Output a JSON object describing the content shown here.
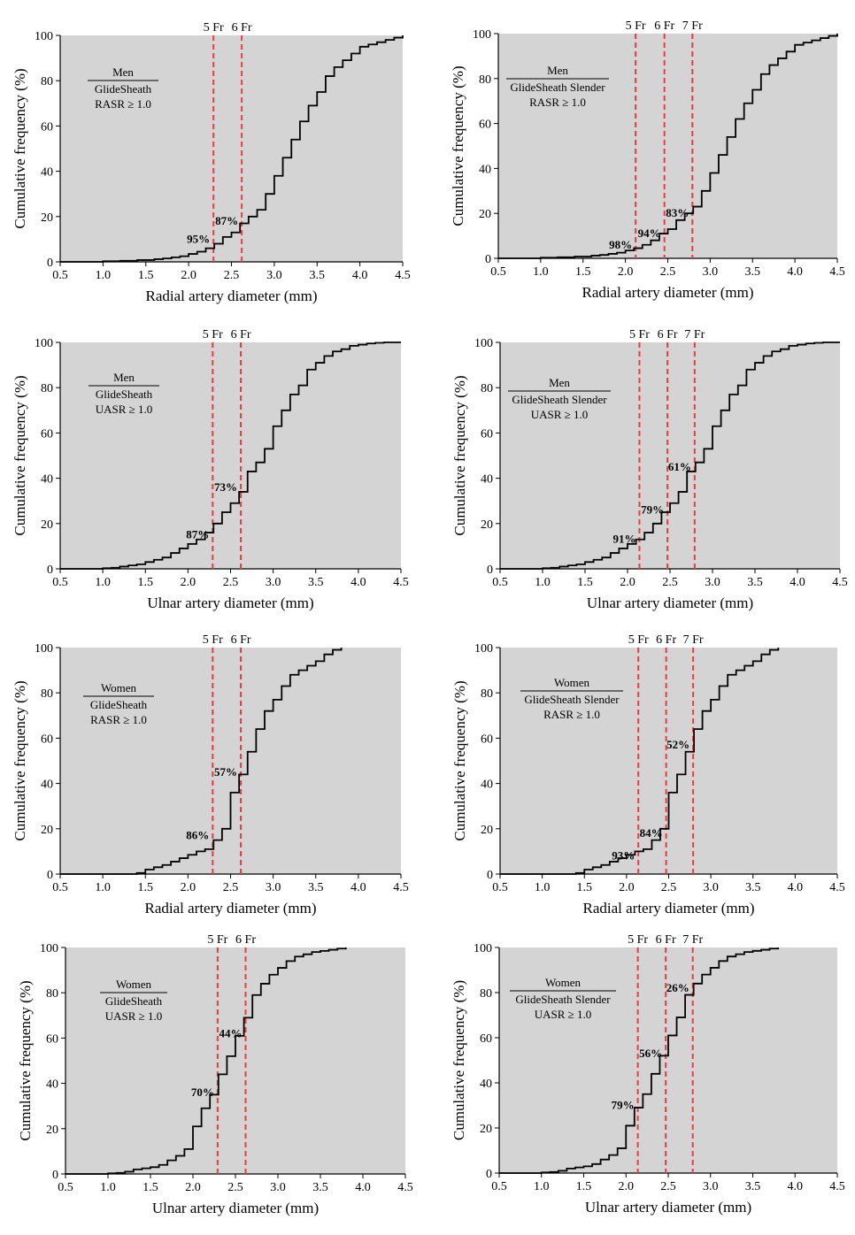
{
  "chart_data": [
    {
      "type": "line",
      "style": "step",
      "xlabel": "Radial artery diameter (mm)",
      "ylabel": "Cumulative frequency (%)",
      "xlim": [
        0.5,
        4.5
      ],
      "ylim": [
        0,
        100
      ],
      "xticks": [
        "0.5",
        "1.0",
        "1.5",
        "2.0",
        "2.5",
        "3.0",
        "3.5",
        "4.0",
        "4.5"
      ],
      "yticks": [
        "0",
        "20",
        "40",
        "60",
        "80",
        "100"
      ],
      "legend": {
        "group": "Men",
        "device": "GlideSheath",
        "ratio": "RASR ≥ 1.0"
      },
      "sheaths": [
        {
          "label": "5 Fr",
          "x": 2.29,
          "pct_label": "95%",
          "pct_y": 10
        },
        {
          "label": "6 Fr",
          "x": 2.62,
          "pct_label": "87%",
          "pct_y": 18
        }
      ],
      "series": [
        {
          "name": "cumulative frequency",
          "x": [
            0.5,
            1.0,
            1.2,
            1.4,
            1.6,
            1.7,
            1.8,
            1.9,
            2.0,
            2.1,
            2.2,
            2.3,
            2.4,
            2.5,
            2.6,
            2.7,
            2.8,
            2.9,
            3.0,
            3.1,
            3.2,
            3.3,
            3.4,
            3.5,
            3.6,
            3.7,
            3.8,
            3.9,
            4.0,
            4.1,
            4.2,
            4.3,
            4.4,
            4.5
          ],
          "y": [
            0,
            0.3,
            0.5,
            0.8,
            1.2,
            1.5,
            2,
            2.5,
            3.5,
            4.5,
            6,
            8,
            11,
            13,
            17,
            20,
            23,
            30,
            38,
            46,
            54,
            62,
            69,
            75,
            82,
            86,
            89,
            92,
            95,
            96,
            97,
            98,
            99,
            100
          ]
        }
      ]
    },
    {
      "type": "line",
      "style": "step",
      "xlabel": "Radial artery diameter (mm)",
      "ylabel": "Cumulative frequency (%)",
      "xlim": [
        0.5,
        4.5
      ],
      "ylim": [
        0,
        100
      ],
      "xticks": [
        "0.5",
        "1.0",
        "1.5",
        "2.0",
        "2.5",
        "3.0",
        "3.5",
        "4.0",
        "4.5"
      ],
      "yticks": [
        "0",
        "20",
        "40",
        "60",
        "80",
        "100"
      ],
      "legend": {
        "group": "Men",
        "device": "GlideSheath Slender",
        "ratio": "RASR ≥ 1.0"
      },
      "sheaths": [
        {
          "label": "5 Fr",
          "x": 2.12,
          "pct_label": "98%",
          "pct_y": 6
        },
        {
          "label": "6 Fr",
          "x": 2.46,
          "pct_label": "94%",
          "pct_y": 11
        },
        {
          "label": "7 Fr",
          "x": 2.79,
          "pct_label": "83%",
          "pct_y": 20
        }
      ],
      "series": [
        {
          "name": "cumulative frequency",
          "x": [
            0.5,
            1.0,
            1.2,
            1.4,
            1.6,
            1.7,
            1.8,
            1.9,
            2.0,
            2.1,
            2.2,
            2.3,
            2.4,
            2.5,
            2.6,
            2.7,
            2.8,
            2.9,
            3.0,
            3.1,
            3.2,
            3.3,
            3.4,
            3.5,
            3.6,
            3.7,
            3.8,
            3.9,
            4.0,
            4.1,
            4.2,
            4.3,
            4.4,
            4.5
          ],
          "y": [
            0,
            0.3,
            0.5,
            0.8,
            1.2,
            1.5,
            2,
            2.5,
            3.5,
            4.5,
            6,
            8,
            11,
            13,
            17,
            20,
            23,
            30,
            38,
            46,
            54,
            62,
            69,
            75,
            82,
            86,
            89,
            92,
            95,
            96,
            97,
            98,
            99,
            100
          ]
        }
      ]
    },
    {
      "type": "line",
      "style": "step",
      "xlabel": "Ulnar artery diameter (mm)",
      "ylabel": "Cumulative frequency (%)",
      "xlim": [
        0.5,
        4.5
      ],
      "ylim": [
        0,
        100
      ],
      "xticks": [
        "0.5",
        "1.0",
        "1.5",
        "2.0",
        "2.5",
        "3.0",
        "3.5",
        "4.0",
        "4.5"
      ],
      "yticks": [
        "0",
        "20",
        "40",
        "60",
        "80",
        "100"
      ],
      "legend": {
        "group": "Men",
        "device": "GlideSheath",
        "ratio": "UASR ≥ 1.0"
      },
      "sheaths": [
        {
          "label": "5 Fr",
          "x": 2.29,
          "pct_label": "87%",
          "pct_y": 15
        },
        {
          "label": "6 Fr",
          "x": 2.62,
          "pct_label": "73%",
          "pct_y": 36
        }
      ],
      "series": [
        {
          "name": "cumulative frequency",
          "x": [
            0.5,
            1.0,
            1.1,
            1.2,
            1.3,
            1.4,
            1.5,
            1.6,
            1.7,
            1.8,
            1.9,
            2.0,
            2.1,
            2.2,
            2.3,
            2.4,
            2.5,
            2.6,
            2.7,
            2.8,
            2.9,
            3.0,
            3.1,
            3.2,
            3.3,
            3.4,
            3.5,
            3.6,
            3.7,
            3.8,
            3.9,
            4.0,
            4.1,
            4.2,
            4.3,
            4.5
          ],
          "y": [
            0,
            0.3,
            0.5,
            1,
            1.5,
            2,
            3,
            4,
            5,
            7,
            9,
            11,
            13,
            16,
            20,
            25,
            29,
            34,
            43,
            47,
            53,
            63,
            70,
            77,
            81,
            88,
            91,
            94,
            96,
            97,
            98.5,
            99,
            99.5,
            99.8,
            100,
            100
          ]
        }
      ]
    },
    {
      "type": "line",
      "style": "step",
      "xlabel": "Ulnar artery diameter (mm)",
      "ylabel": "Cumulative frequency (%)",
      "xlim": [
        0.5,
        4.5
      ],
      "ylim": [
        0,
        100
      ],
      "xticks": [
        "0.5",
        "1.0",
        "1.5",
        "2.0",
        "2.5",
        "3.0",
        "3.5",
        "4.0",
        "4.5"
      ],
      "yticks": [
        "0",
        "20",
        "40",
        "60",
        "80",
        "100"
      ],
      "legend": {
        "group": "Men",
        "device": "GlideSheath Slender",
        "ratio": "UASR ≥ 1.0"
      },
      "sheaths": [
        {
          "label": "5 Fr",
          "x": 2.14,
          "pct_label": "91%",
          "pct_y": 13
        },
        {
          "label": "6 Fr",
          "x": 2.47,
          "pct_label": "79%",
          "pct_y": 26
        },
        {
          "label": "7 Fr",
          "x": 2.79,
          "pct_label": "61%",
          "pct_y": 45
        }
      ],
      "series": [
        {
          "name": "cumulative frequency",
          "x": [
            0.5,
            1.0,
            1.1,
            1.2,
            1.3,
            1.4,
            1.5,
            1.6,
            1.7,
            1.8,
            1.9,
            2.0,
            2.1,
            2.2,
            2.3,
            2.4,
            2.5,
            2.6,
            2.7,
            2.8,
            2.9,
            3.0,
            3.1,
            3.2,
            3.3,
            3.4,
            3.5,
            3.6,
            3.7,
            3.8,
            3.9,
            4.0,
            4.1,
            4.2,
            4.3,
            4.5
          ],
          "y": [
            0,
            0.3,
            0.5,
            1,
            1.5,
            2,
            3,
            4,
            5,
            7,
            9,
            11,
            13,
            16,
            20,
            25,
            29,
            34,
            43,
            47,
            53,
            63,
            70,
            77,
            81,
            88,
            91,
            94,
            96,
            97,
            98.5,
            99,
            99.5,
            99.8,
            100,
            100
          ]
        }
      ]
    },
    {
      "type": "line",
      "style": "step",
      "xlabel": "Radial artery diameter (mm)",
      "ylabel": "Cumulative frequency (%)",
      "xlim": [
        0.5,
        4.5
      ],
      "ylim": [
        0,
        100
      ],
      "xticks": [
        "0.5",
        "1.0",
        "1.5",
        "2.0",
        "2.5",
        "3.0",
        "3.5",
        "4.0",
        "4.5"
      ],
      "yticks": [
        "0",
        "20",
        "40",
        "60",
        "80",
        "100"
      ],
      "legend": {
        "group": "Women",
        "device": "GlideSheath",
        "ratio": "RASR ≥ 1.0"
      },
      "sheaths": [
        {
          "label": "5 Fr",
          "x": 2.29,
          "pct_label": "86%",
          "pct_y": 17
        },
        {
          "label": "6 Fr",
          "x": 2.62,
          "pct_label": "57%",
          "pct_y": 45
        }
      ],
      "series": [
        {
          "name": "cumulative frequency",
          "x": [
            0.5,
            1.4,
            1.5,
            1.6,
            1.7,
            1.8,
            1.9,
            2.0,
            2.1,
            2.2,
            2.3,
            2.4,
            2.5,
            2.6,
            2.7,
            2.8,
            2.9,
            3.0,
            3.1,
            3.2,
            3.3,
            3.4,
            3.5,
            3.6,
            3.7,
            3.8
          ],
          "y": [
            0,
            0.5,
            2,
            3,
            4,
            5.5,
            7,
            8.5,
            10,
            11,
            15,
            20,
            36,
            44,
            54,
            64,
            72,
            77,
            83,
            88,
            90,
            92,
            94,
            97,
            99,
            100
          ]
        }
      ]
    },
    {
      "type": "line",
      "style": "step",
      "xlabel": "Radial artery diameter (mm)",
      "ylabel": "Cumulative frequency (%)",
      "xlim": [
        0.5,
        4.5
      ],
      "ylim": [
        0,
        100
      ],
      "xticks": [
        "0.5",
        "1.0",
        "1.5",
        "2.0",
        "2.5",
        "3.0",
        "3.5",
        "4.0",
        "4.5"
      ],
      "yticks": [
        "0",
        "20",
        "40",
        "60",
        "80",
        "100"
      ],
      "legend": {
        "group": "Women",
        "device": "GlideSheath Slender",
        "ratio": "RASR ≥ 1.0"
      },
      "sheaths": [
        {
          "label": "5 Fr",
          "x": 2.14,
          "pct_label": "93%",
          "pct_y": 8
        },
        {
          "label": "6 Fr",
          "x": 2.47,
          "pct_label": "84%",
          "pct_y": 18
        },
        {
          "label": "7 Fr",
          "x": 2.79,
          "pct_label": "52%",
          "pct_y": 57
        }
      ],
      "series": [
        {
          "name": "cumulative frequency",
          "x": [
            0.5,
            1.4,
            1.5,
            1.6,
            1.7,
            1.8,
            1.9,
            2.0,
            2.1,
            2.2,
            2.3,
            2.4,
            2.5,
            2.6,
            2.7,
            2.8,
            2.9,
            3.0,
            3.1,
            3.2,
            3.3,
            3.4,
            3.5,
            3.6,
            3.7,
            3.8
          ],
          "y": [
            0,
            0.5,
            2,
            3,
            4,
            5.5,
            7,
            8.5,
            10,
            11,
            15,
            20,
            36,
            44,
            54,
            64,
            72,
            77,
            83,
            88,
            90,
            92,
            94,
            97,
            99,
            100
          ]
        }
      ]
    },
    {
      "type": "line",
      "style": "step",
      "xlabel": "Ulnar artery diameter (mm)",
      "ylabel": "Cumulative frequency (%)",
      "xlim": [
        0.5,
        4.5
      ],
      "ylim": [
        0,
        100
      ],
      "xticks": [
        "0.5",
        "1.0",
        "1.5",
        "2.0",
        "2.5",
        "3.0",
        "3.5",
        "4.0",
        "4.5"
      ],
      "yticks": [
        "0",
        "20",
        "40",
        "60",
        "80",
        "100"
      ],
      "legend": {
        "group": "Women",
        "device": "GlideSheath",
        "ratio": "UASR ≥ 1.0"
      },
      "sheaths": [
        {
          "label": "5 Fr",
          "x": 2.29,
          "pct_label": "70%",
          "pct_y": 36
        },
        {
          "label": "6 Fr",
          "x": 2.62,
          "pct_label": "44%",
          "pct_y": 62
        }
      ],
      "series": [
        {
          "name": "cumulative frequency",
          "x": [
            0.5,
            1.0,
            1.1,
            1.2,
            1.3,
            1.4,
            1.5,
            1.6,
            1.7,
            1.8,
            1.9,
            2.0,
            2.1,
            2.2,
            2.3,
            2.4,
            2.5,
            2.6,
            2.7,
            2.8,
            2.9,
            3.0,
            3.1,
            3.2,
            3.3,
            3.4,
            3.5,
            3.6,
            3.7,
            3.8
          ],
          "y": [
            0,
            0.3,
            0.5,
            1,
            2,
            2.5,
            3,
            4,
            6,
            8,
            11,
            21,
            29,
            35,
            44,
            52,
            61,
            69,
            79,
            84,
            88,
            91,
            94,
            96,
            97,
            98,
            98.5,
            99,
            99.5,
            100
          ]
        }
      ]
    },
    {
      "type": "line",
      "style": "step",
      "xlabel": "Ulnar artery diameter (mm)",
      "ylabel": "Cumulative frequency (%)",
      "xlim": [
        0.5,
        4.5
      ],
      "ylim": [
        0,
        100
      ],
      "xticks": [
        "0.5",
        "1.0",
        "1.5",
        "2.0",
        "2.5",
        "3.0",
        "3.5",
        "4.0",
        "4.5"
      ],
      "yticks": [
        "0",
        "20",
        "40",
        "60",
        "80",
        "100"
      ],
      "legend": {
        "group": "Women",
        "device": "GlideSheath Slender",
        "ratio": "UASR ≥ 1.0"
      },
      "sheaths": [
        {
          "label": "5 Fr",
          "x": 2.14,
          "pct_label": "79%",
          "pct_y": 30
        },
        {
          "label": "6 Fr",
          "x": 2.47,
          "pct_label": "56%",
          "pct_y": 53
        },
        {
          "label": "7 Fr",
          "x": 2.79,
          "pct_label": "26%",
          "pct_y": 82
        }
      ],
      "series": [
        {
          "name": "cumulative frequency",
          "x": [
            0.5,
            1.0,
            1.1,
            1.2,
            1.3,
            1.4,
            1.5,
            1.6,
            1.7,
            1.8,
            1.9,
            2.0,
            2.1,
            2.2,
            2.3,
            2.4,
            2.5,
            2.6,
            2.7,
            2.8,
            2.9,
            3.0,
            3.1,
            3.2,
            3.3,
            3.4,
            3.5,
            3.6,
            3.7,
            3.8
          ],
          "y": [
            0,
            0.3,
            0.5,
            1,
            2,
            2.5,
            3,
            4,
            6,
            8,
            11,
            21,
            29,
            35,
            44,
            52,
            61,
            69,
            79,
            84,
            88,
            91,
            94,
            96,
            97,
            98,
            98.5,
            99,
            99.5,
            100
          ]
        }
      ]
    }
  ]
}
